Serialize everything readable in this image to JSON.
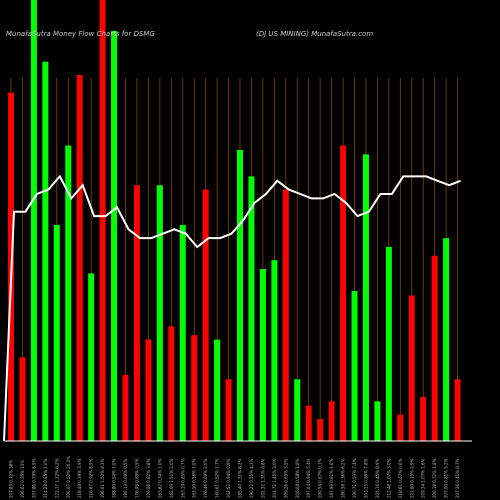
{
  "chart_data": {
    "type": "bar",
    "title_left": "MunafaSutra  Money Flow  Charts for DSMG",
    "title_right": "(DJ US MINING) MunafaSutra.com",
    "colors": {
      "background": "#000000",
      "up": "#00ff00",
      "down": "#ff0000",
      "grid": "#8b4500",
      "line": "#ffffff",
      "baseline": "#ffffff"
    },
    "ylim": [
      0,
      100
    ],
    "values": [
      79,
      19,
      100,
      86,
      49,
      67,
      83,
      38,
      100,
      93,
      15,
      58,
      23,
      58,
      26,
      49,
      24,
      57,
      23,
      14,
      66,
      60,
      39,
      41,
      57,
      14,
      8,
      5,
      9,
      67,
      34,
      65,
      9,
      44,
      6,
      33,
      10,
      42,
      46,
      14
    ],
    "direction": [
      "down",
      "down",
      "up",
      "up",
      "up",
      "up",
      "down",
      "up",
      "down",
      "up",
      "down",
      "down",
      "down",
      "up",
      "down",
      "up",
      "down",
      "down",
      "up",
      "down",
      "up",
      "up",
      "up",
      "up",
      "down",
      "up",
      "down",
      "down",
      "down",
      "down",
      "up",
      "up",
      "up",
      "up",
      "down",
      "down",
      "down",
      "down",
      "up",
      "down"
    ],
    "money_flow_line": [
      52,
      52,
      56,
      57,
      60,
      55,
      58,
      51,
      51,
      53,
      48,
      46,
      46,
      47,
      48,
      47,
      44,
      46,
      46,
      47,
      50,
      54,
      56,
      59,
      57,
      56,
      55,
      55,
      56,
      54,
      51,
      52,
      56,
      56,
      60,
      60,
      60,
      59,
      58,
      59
    ],
    "x_labels": [
      "207.83 0.12% 38%",
      "196.62 0.35% 13%",
      "207.86 0.79% 6.9%",
      "214.28 0.85% 1.0%",
      "222.17 1.12% 6.2%",
      "206.07 0.52% 20.0%",
      "218.48 0.39% 3.9%",
      "216.67 0.92% 8.9%",
      "196.01 1.52% 8.3%",
      "188.80 0.54% 1.0%",
      "188.13 0.09% 0.5%",
      "176.95 0.89% 0.5%",
      "176.06 0.82% 3.8%",
      "163.82 0.34% 1.0%",
      "162.09 1.51% 2.0%",
      "163.19 0.83% 0.7%",
      "163.50 0.56% 1.0%",
      "176.46 0.69% 2.0%",
      "160.61 0.52% 1.7%",
      "162.52 0.94% 0.9%",
      "185.40 1.51% 8.2%",
      "190.22 0.55% 4.3%",
      "202.32 1.51% 8.8%",
      "204.72 1.45% 3.0%",
      "209.26 0.65% 3.5%",
      "206.08 0.58% 1.8%",
      "197.04 0.94% 5.4%",
      "199.54 0.67% 0.1%",
      "187.98 0.81% 1.6%",
      "180.38 1.36% 6.2%",
      "190.71 0.53% 7.4%",
      "203.15 0.86% 7.8%",
      "205.16 0.45% 8.9%",
      "212.48 1.07% 3.0%",
      "218.61 0.67% 0.6%",
      "221.60 0.15% 2.9%",
      "209.34 1.07% 1.6%",
      "208.18 0.72% 1.8%",
      "207.00 0.81% 5.2%",
      "207.36 0.41% 8.7%"
    ]
  }
}
